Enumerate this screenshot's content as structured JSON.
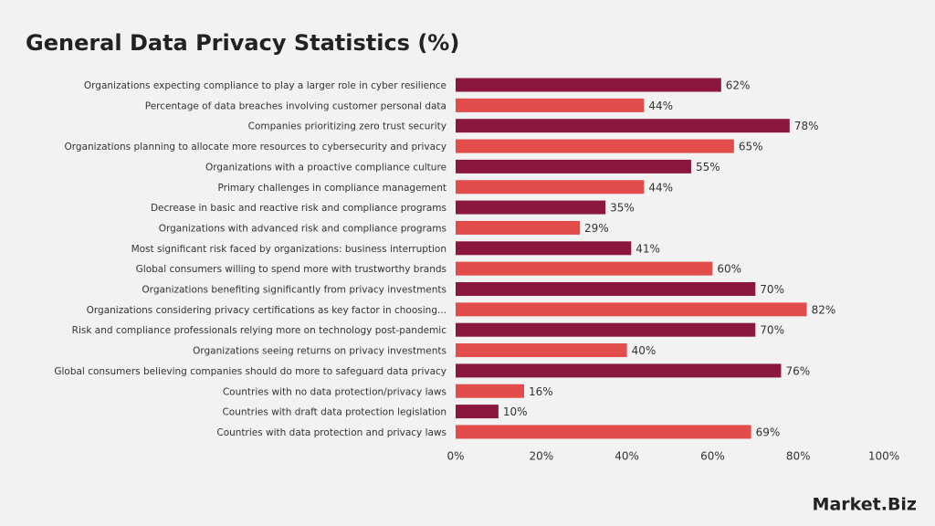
{
  "chart_data": {
    "type": "bar",
    "orientation": "horizontal",
    "title": "General Data Privacy Statistics (%)",
    "categories": [
      "Organizations expecting compliance to play a larger role in cyber resilience",
      "Percentage of data breaches involving customer personal data",
      "Companies prioritizing zero trust security",
      "Organizations planning to allocate more resources to cybersecurity and privacy",
      "Organizations with a proactive compliance culture",
      "Primary challenges in compliance management",
      "Decrease in basic and reactive risk and compliance programs",
      "Organizations with advanced risk and compliance programs",
      "Most significant risk faced by organizations: business interruption",
      "Global consumers willing to spend more with trustworthy brands",
      "Organizations benefiting significantly from privacy investments",
      "Organizations considering privacy certifications as key factor in choosing...",
      "Risk and compliance professionals relying more on technology post-pandemic",
      "Organizations seeing returns on privacy investments",
      "Global consumers believing companies should do more to safeguard data privacy",
      "Countries with no data protection/privacy laws",
      "Countries with draft data protection legislation",
      "Countries with data protection and privacy laws"
    ],
    "values": [
      62,
      44,
      78,
      65,
      55,
      44,
      35,
      29,
      41,
      60,
      70,
      82,
      70,
      40,
      76,
      16,
      10,
      69
    ],
    "value_labels": [
      "62%",
      "44%",
      "78%",
      "65%",
      "55%",
      "44%",
      "35%",
      "29%",
      "41%",
      "60%",
      "70%",
      "82%",
      "70%",
      "40%",
      "76%",
      "16%",
      "10%",
      "69%"
    ],
    "colors": [
      "#8b1740",
      "#e24c4b"
    ],
    "xlim": [
      0,
      100
    ],
    "xticks": [
      {
        "value": 0,
        "label": "0%"
      },
      {
        "value": 20,
        "label": "20%"
      },
      {
        "value": 40,
        "label": "40%"
      },
      {
        "value": 60,
        "label": "60%"
      },
      {
        "value": 80,
        "label": "80%"
      },
      {
        "value": 100,
        "label": "100%"
      }
    ],
    "grid": false
  },
  "logo": "Market.Biz"
}
